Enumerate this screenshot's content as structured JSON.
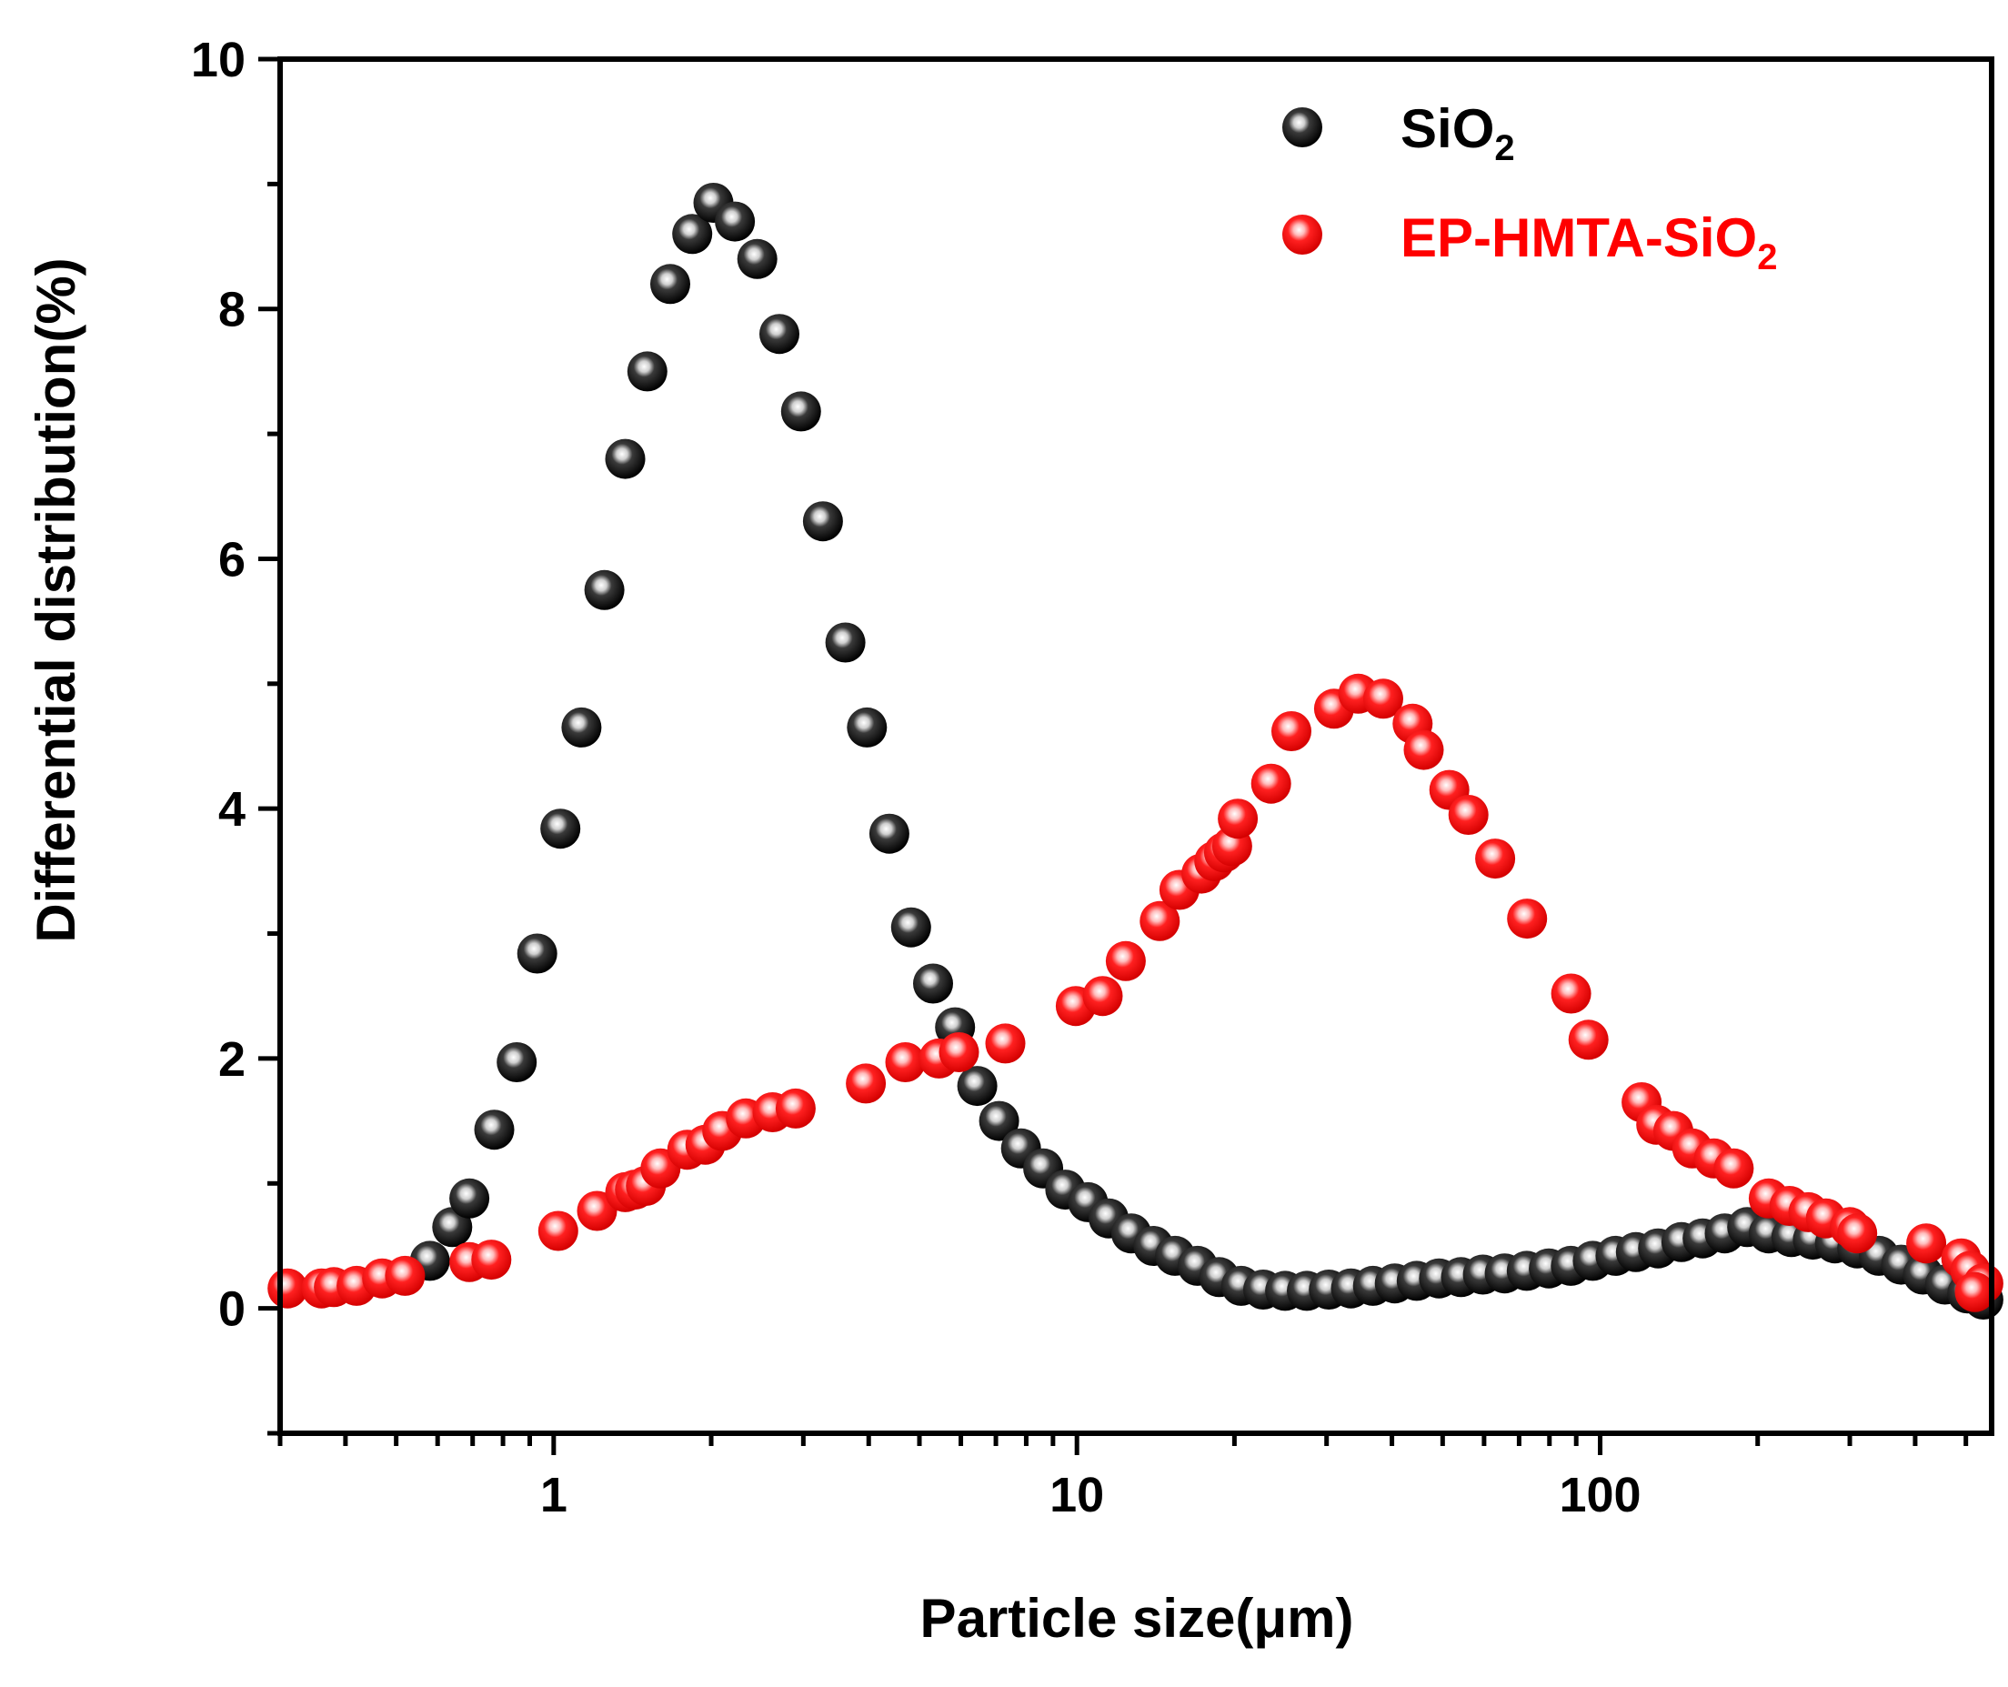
{
  "chart_data": {
    "type": "scatter",
    "title": "",
    "xlabel": "Particle size(μm)",
    "ylabel": "Differential distribution(%)",
    "xscale": "log",
    "xlim": [
      0.3,
      560
    ],
    "ylim": [
      -1,
      10
    ],
    "x_ticks": [
      1,
      10,
      100
    ],
    "x_tick_labels": [
      "1",
      "10",
      "100"
    ],
    "y_ticks": [
      0,
      2,
      4,
      6,
      8,
      10
    ],
    "y_tick_labels": [
      "0",
      "2",
      "4",
      "6",
      "8",
      "10"
    ],
    "grid": false,
    "legend_position": "top-right",
    "series": [
      {
        "name": "SiO2",
        "label_main": "SiO",
        "label_sub": "2",
        "color": "#000000",
        "x": [
          0.58,
          0.64,
          0.69,
          0.77,
          0.85,
          0.93,
          1.03,
          1.13,
          1.25,
          1.37,
          1.51,
          1.67,
          1.84,
          2.02,
          2.22,
          2.45,
          2.7,
          2.97,
          3.27,
          3.61,
          3.97,
          4.38,
          4.82,
          5.31,
          5.85,
          6.45,
          7.1,
          7.82,
          8.62,
          9.5,
          10.5,
          11.5,
          12.7,
          14.0,
          15.4,
          17.0,
          18.7,
          20.6,
          22.7,
          25.0,
          27.5,
          30.3,
          33.4,
          36.8,
          40.5,
          44.6,
          49.2,
          54.2,
          59.7,
          65.7,
          72.4,
          79.8,
          87.9,
          96.8,
          107,
          117,
          129,
          143,
          157,
          173,
          191,
          210,
          232,
          255,
          281,
          310,
          341,
          376,
          414,
          456,
          503,
          540
        ],
        "y": [
          0.38,
          0.65,
          0.88,
          1.43,
          1.97,
          2.84,
          3.84,
          4.65,
          5.75,
          6.8,
          7.5,
          8.2,
          8.6,
          8.85,
          8.7,
          8.4,
          7.8,
          7.18,
          6.3,
          5.33,
          4.65,
          3.8,
          3.05,
          2.6,
          2.25,
          1.78,
          1.5,
          1.28,
          1.12,
          0.95,
          0.85,
          0.72,
          0.6,
          0.5,
          0.42,
          0.34,
          0.25,
          0.18,
          0.15,
          0.14,
          0.14,
          0.15,
          0.16,
          0.18,
          0.2,
          0.22,
          0.24,
          0.25,
          0.27,
          0.28,
          0.3,
          0.32,
          0.34,
          0.38,
          0.42,
          0.45,
          0.48,
          0.53,
          0.56,
          0.6,
          0.65,
          0.6,
          0.57,
          0.55,
          0.52,
          0.48,
          0.42,
          0.35,
          0.27,
          0.19,
          0.12,
          0.07
        ]
      },
      {
        "name": "EP-HMTA-SiO2",
        "label_main": "EP-HMTA-SiO",
        "label_sub": "2",
        "color": "#ff0000",
        "x": [
          0.31,
          0.36,
          0.38,
          0.42,
          0.47,
          0.52,
          0.69,
          0.76,
          1.02,
          1.21,
          1.37,
          1.43,
          1.5,
          1.6,
          1.8,
          1.95,
          2.1,
          2.33,
          2.62,
          2.9,
          3.95,
          4.7,
          5.45,
          5.95,
          7.3,
          9.95,
          11.2,
          12.4,
          14.4,
          15.7,
          17.3,
          18.3,
          19.1,
          19.8,
          20.3,
          23.5,
          25.7,
          31.0,
          34.5,
          38.5,
          43.8,
          46.0,
          51.5,
          56.0,
          63.0,
          72.5,
          88.0,
          95.0,
          120,
          128,
          138,
          150,
          165,
          180,
          210,
          230,
          250,
          270,
          300,
          310,
          420,
          490,
          510,
          540,
          520
        ],
        "y": [
          0.16,
          0.16,
          0.17,
          0.18,
          0.24,
          0.26,
          0.37,
          0.39,
          0.62,
          0.78,
          0.93,
          0.95,
          0.98,
          1.12,
          1.27,
          1.31,
          1.42,
          1.52,
          1.57,
          1.6,
          1.8,
          1.97,
          2.0,
          2.05,
          2.12,
          2.42,
          2.5,
          2.78,
          3.1,
          3.35,
          3.48,
          3.58,
          3.65,
          3.7,
          3.92,
          4.2,
          4.62,
          4.8,
          4.92,
          4.88,
          4.68,
          4.47,
          4.15,
          3.95,
          3.6,
          3.12,
          2.52,
          2.15,
          1.65,
          1.47,
          1.42,
          1.28,
          1.2,
          1.12,
          0.88,
          0.82,
          0.77,
          0.72,
          0.65,
          0.6,
          0.52,
          0.4,
          0.3,
          0.2,
          0.13
        ]
      }
    ]
  }
}
